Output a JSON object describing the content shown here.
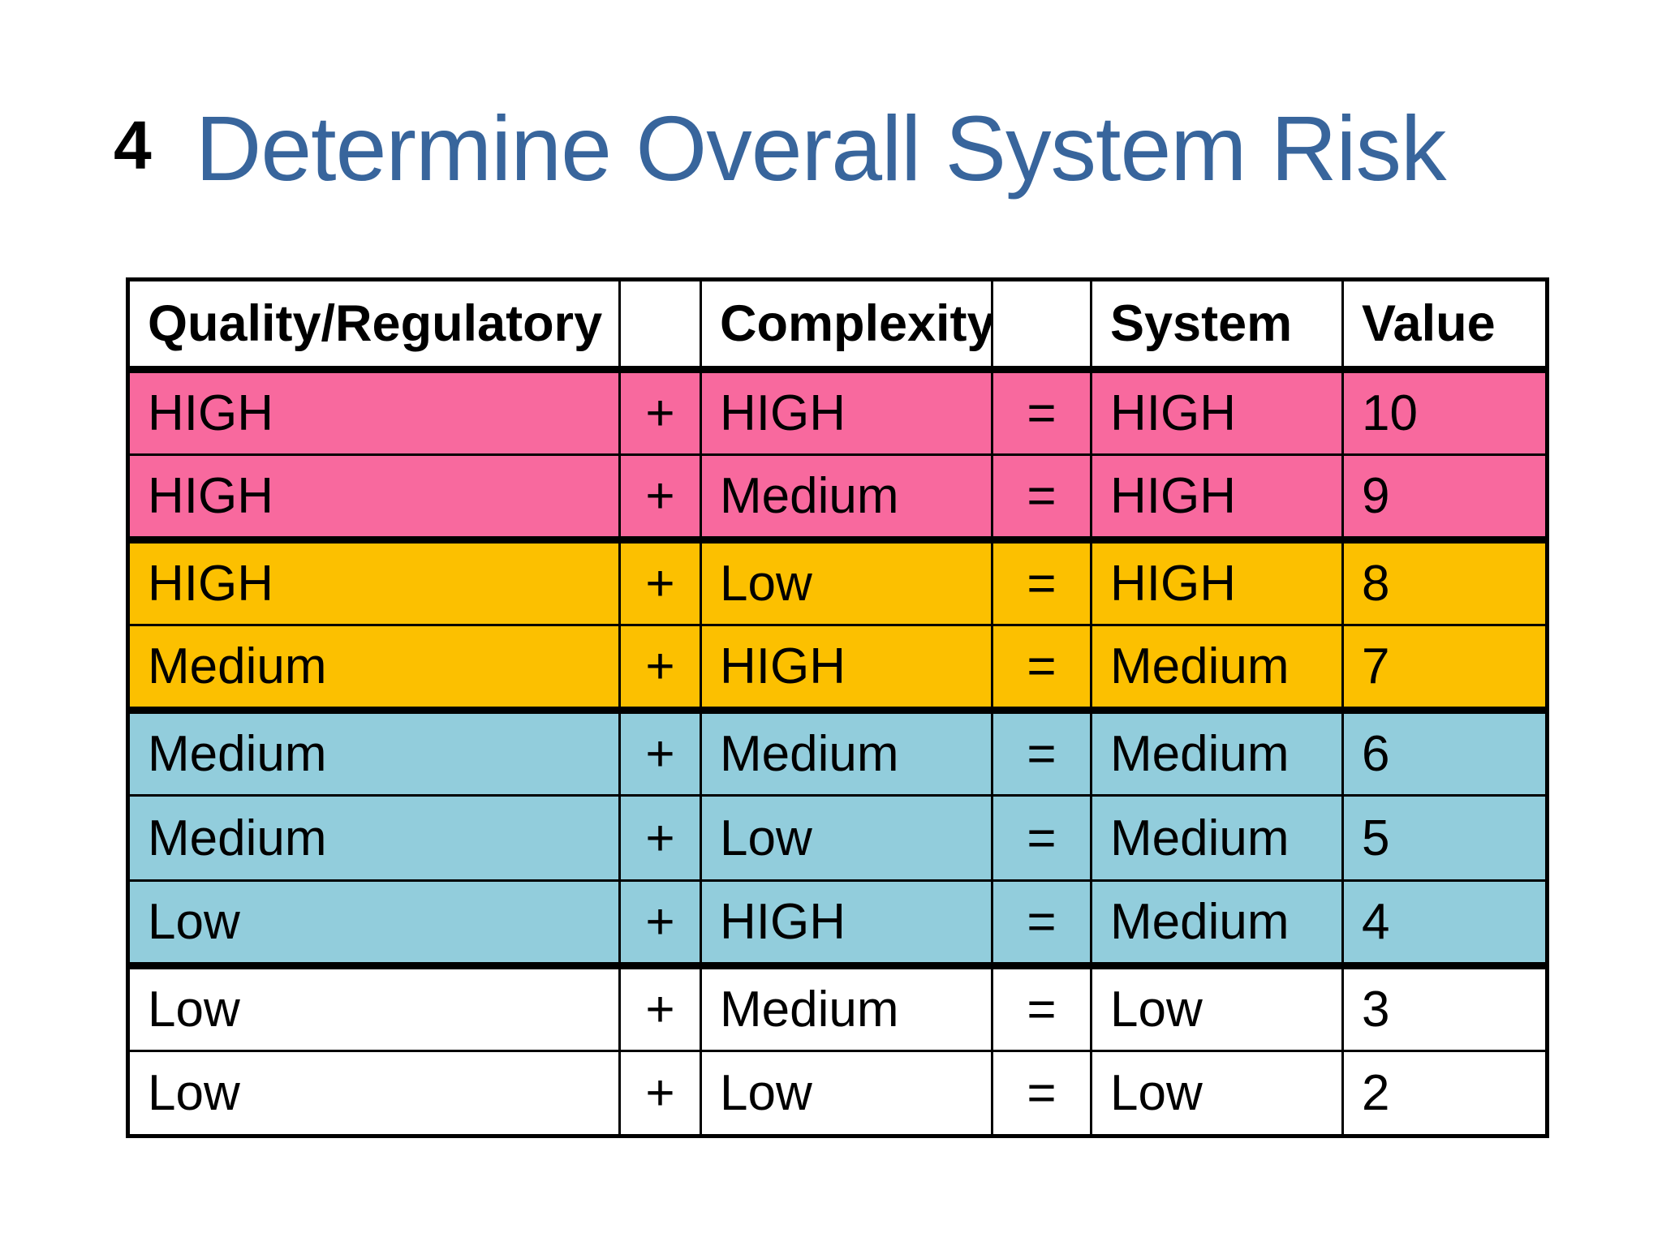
{
  "slide": {
    "number": "4",
    "title": "Determine Overall System Risk",
    "title_color": "#38659C"
  },
  "table": {
    "headers": [
      {
        "label": "Quality/Regulatory"
      },
      {
        "label": ""
      },
      {
        "label": "Complexity"
      },
      {
        "label": ""
      },
      {
        "label": "System"
      },
      {
        "label": "Value"
      }
    ],
    "colors": {
      "pink": "#F8699E",
      "gold": "#FCC000",
      "blue": "#92CDDC",
      "white": "#FFFFFF"
    },
    "rows": [
      {
        "quality": "HIGH",
        "op": "+",
        "complexity": "HIGH",
        "eq": "=",
        "system": "HIGH",
        "value": "10",
        "tone": "pink",
        "group_end": false
      },
      {
        "quality": "HIGH",
        "op": "+",
        "complexity": "Medium",
        "eq": "=",
        "system": "HIGH",
        "value": "9",
        "tone": "pink",
        "group_end": true
      },
      {
        "quality": "HIGH",
        "op": "+",
        "complexity": "Low",
        "eq": "=",
        "system": "HIGH",
        "value": "8",
        "tone": "gold",
        "group_end": false
      },
      {
        "quality": "Medium",
        "op": "+",
        "complexity": "HIGH",
        "eq": "=",
        "system": "Medium",
        "value": "7",
        "tone": "gold",
        "group_end": true
      },
      {
        "quality": "Medium",
        "op": "+",
        "complexity": "Medium",
        "eq": "=",
        "system": "Medium",
        "value": "6",
        "tone": "blue",
        "group_end": false
      },
      {
        "quality": "Medium",
        "op": "+",
        "complexity": "Low",
        "eq": "=",
        "system": "Medium",
        "value": "5",
        "tone": "blue",
        "group_end": false
      },
      {
        "quality": "Low",
        "op": "+",
        "complexity": "HIGH",
        "eq": "=",
        "system": "Medium",
        "value": "4",
        "tone": "blue",
        "group_end": true
      },
      {
        "quality": "Low",
        "op": "+",
        "complexity": "Medium",
        "eq": "=",
        "system": "Low",
        "value": "3",
        "tone": "white",
        "group_end": false
      },
      {
        "quality": "Low",
        "op": "+",
        "complexity": "Low",
        "eq": "=",
        "system": "Low",
        "value": "2",
        "tone": "white",
        "group_end": false
      }
    ]
  }
}
